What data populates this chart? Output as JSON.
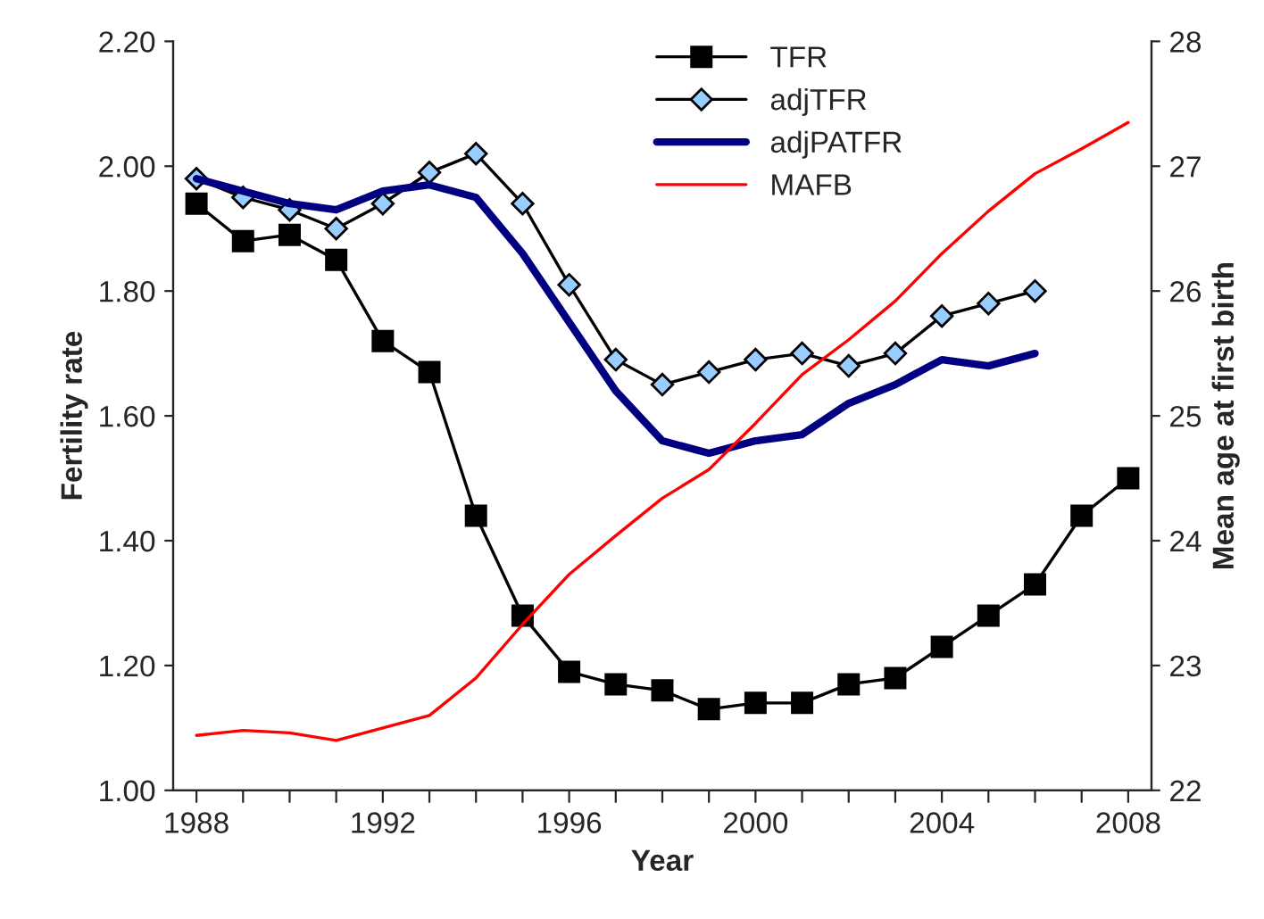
{
  "chart_data": {
    "type": "line",
    "xlabel": "Year",
    "ylabel": "Fertility rate",
    "y2label": "Mean age at first birth",
    "categories": [
      "1988",
      null,
      null,
      null,
      "1992",
      null,
      null,
      null,
      "1996",
      null,
      null,
      null,
      "2000",
      null,
      null,
      null,
      "2004",
      null,
      null,
      null,
      "2008"
    ],
    "series": [
      {
        "name": "TFR",
        "color": "#000000",
        "marker": "square",
        "values": [
          1.94,
          1.88,
          1.89,
          1.85,
          1.72,
          1.67,
          1.44,
          1.28,
          1.19,
          1.17,
          1.16,
          1.13,
          1.14,
          1.14,
          1.17,
          1.18,
          1.23,
          1.28,
          1.33,
          1.44,
          1.5
        ]
      },
      {
        "name": "adjTFR",
        "color": "#000000",
        "marker": "diamond",
        "values": [
          1.98,
          1.95,
          1.93,
          1.9,
          1.94,
          1.99,
          2.02,
          1.94,
          1.81,
          1.69,
          1.65,
          1.67,
          1.69,
          1.7,
          1.68,
          1.7,
          1.76,
          1.78,
          1.8,
          null,
          null
        ]
      },
      {
        "name": "adjPATFR",
        "color": "#000080",
        "marker": "none",
        "values": [
          1.98,
          1.96,
          1.94,
          1.93,
          1.96,
          1.97,
          1.95,
          1.86,
          1.75,
          1.64,
          1.56,
          1.54,
          1.56,
          1.57,
          1.62,
          1.65,
          1.69,
          1.68,
          1.7,
          null,
          null
        ]
      },
      {
        "name": "MAFB",
        "color": "#ff0000",
        "marker": "none",
        "axis": "y2",
        "values": [
          22.44,
          22.48,
          22.46,
          22.4,
          22.5,
          22.6,
          22.9,
          23.33,
          23.73,
          24.04,
          24.34,
          24.57,
          24.94,
          25.33,
          25.61,
          25.92,
          26.3,
          26.64,
          26.94,
          27.14,
          27.35
        ]
      }
    ],
    "ylim": [
      1.0,
      2.2
    ],
    "yticks": [
      {
        "value": 1.0,
        "label": "1.00"
      },
      {
        "value": 1.2,
        "label": "1.20"
      },
      {
        "value": 1.4,
        "label": "1.40"
      },
      {
        "value": 1.6,
        "label": "1.60"
      },
      {
        "value": 1.8,
        "label": "1.80"
      },
      {
        "value": 2.0,
        "label": "2.00"
      },
      {
        "value": 2.2,
        "label": "2.20"
      }
    ],
    "y2lim": [
      22,
      28
    ],
    "y2ticks": [
      22,
      23,
      24,
      25,
      26,
      27,
      28
    ],
    "grid": false,
    "legend": "top right",
    "line_style": "solid"
  }
}
